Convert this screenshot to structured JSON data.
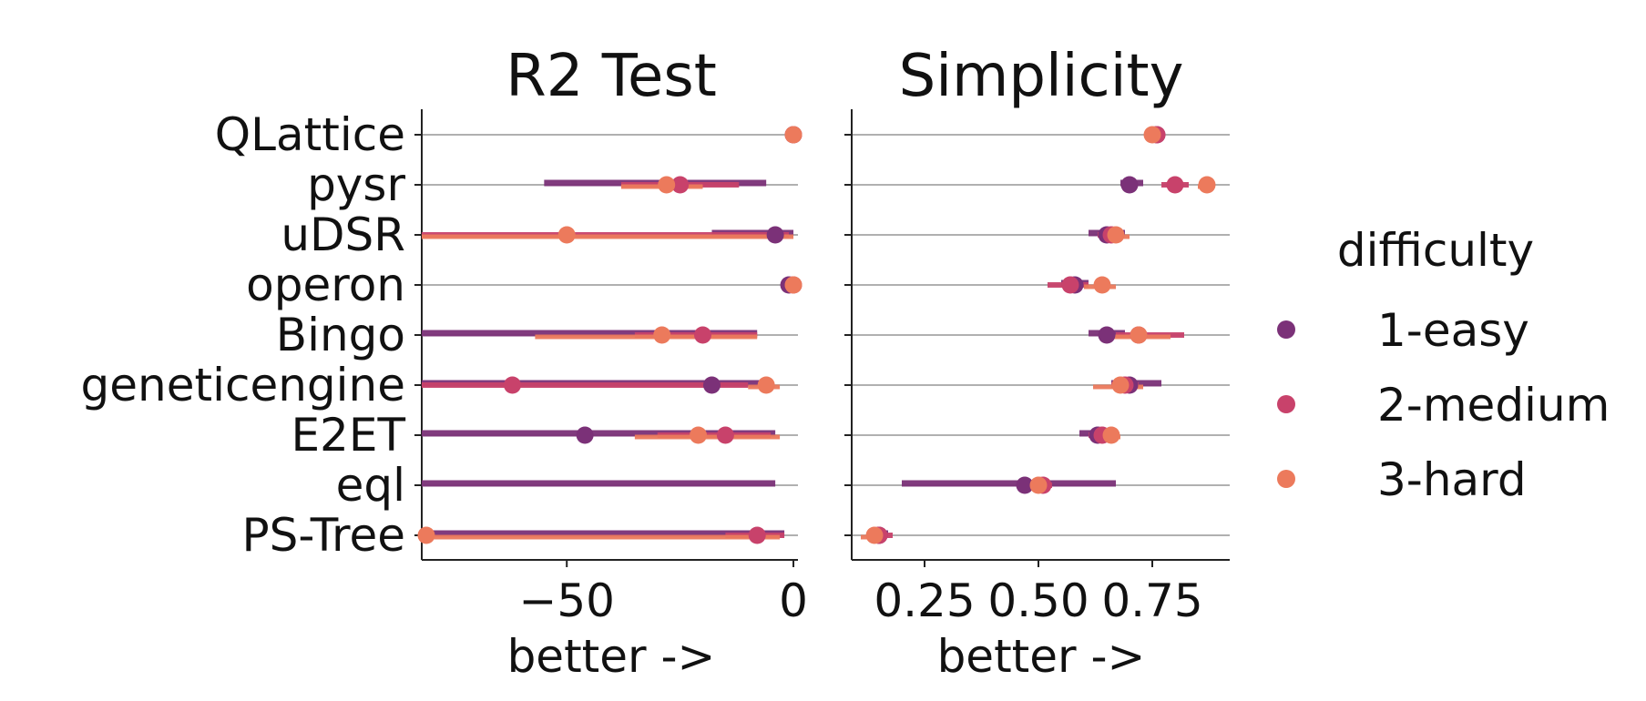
{
  "colors": {
    "1-easy": "#7b3178",
    "2-medium": "#c8426b",
    "3-hard": "#ec7a5c"
  },
  "chart_data": {
    "type": "scatter",
    "categories": [
      "QLattice",
      "pysr",
      "uDSR",
      "operon",
      "Bingo",
      "geneticengine",
      "E2ET",
      "eql",
      "PS-Tree"
    ],
    "legend": {
      "title": "difficulty",
      "placement": "right",
      "entries": [
        "1-easy",
        "2-medium",
        "3-hard"
      ]
    },
    "panels": [
      {
        "title": "R2 Test",
        "xlabel": "better ->",
        "xlim": [
          -82,
          1
        ],
        "xticks": [
          -50,
          0
        ],
        "xtick_labels": [
          "−50",
          "0"
        ],
        "grid": "horizontal",
        "series": [
          {
            "name": "1-easy",
            "points": [
              {
                "category": "QLattice",
                "value": 0,
                "ci": [
                  -1,
                  0
                ]
              },
              {
                "category": "pysr",
                "value": null,
                "ci": [
                  -55,
                  -6
                ]
              },
              {
                "category": "uDSR",
                "value": -4,
                "ci": [
                  -18,
                  0
                ]
              },
              {
                "category": "operon",
                "value": -1,
                "ci": [
                  -2,
                  0
                ]
              },
              {
                "category": "Bingo",
                "value": null,
                "ci": [
                  -82,
                  -8
                ]
              },
              {
                "category": "geneticengine",
                "value": -18,
                "ci": [
                  -82,
                  -5
                ]
              },
              {
                "category": "E2ET",
                "value": -46,
                "ci": [
                  -82,
                  -4
                ]
              },
              {
                "category": "eql",
                "value": null,
                "ci": [
                  -82,
                  -4
                ]
              },
              {
                "category": "PS-Tree",
                "value": null,
                "ci": [
                  -82,
                  -2
                ]
              }
            ]
          },
          {
            "name": "2-medium",
            "points": [
              {
                "category": "QLattice",
                "value": 0,
                "ci": [
                  -1,
                  0
                ]
              },
              {
                "category": "pysr",
                "value": -25,
                "ci": [
                  -38,
                  -12
                ]
              },
              {
                "category": "uDSR",
                "value": null,
                "ci": [
                  -82,
                  -1
                ]
              },
              {
                "category": "operon",
                "value": 0,
                "ci": [
                  -1,
                  0
                ]
              },
              {
                "category": "Bingo",
                "value": -20,
                "ci": [
                  -35,
                  -8
                ]
              },
              {
                "category": "geneticengine",
                "value": -62,
                "ci": [
                  -82,
                  -10
                ]
              },
              {
                "category": "E2ET",
                "value": -15,
                "ci": [
                  -30,
                  -5
                ]
              },
              {
                "category": "eql",
                "value": null,
                "ci": null
              },
              {
                "category": "PS-Tree",
                "value": -8,
                "ci": [
                  -15,
                  -2
                ]
              }
            ]
          },
          {
            "name": "3-hard",
            "points": [
              {
                "category": "QLattice",
                "value": 0,
                "ci": [
                  -1,
                  0
                ]
              },
              {
                "category": "pysr",
                "value": -28,
                "ci": [
                  -38,
                  -20
                ]
              },
              {
                "category": "uDSR",
                "value": -50,
                "ci": [
                  -82,
                  0
                ]
              },
              {
                "category": "operon",
                "value": 0,
                "ci": [
                  -1,
                  0
                ]
              },
              {
                "category": "Bingo",
                "value": -29,
                "ci": [
                  -57,
                  -8
                ]
              },
              {
                "category": "geneticengine",
                "value": -6,
                "ci": [
                  -10,
                  -3
                ]
              },
              {
                "category": "E2ET",
                "value": -21,
                "ci": [
                  -35,
                  -3
                ]
              },
              {
                "category": "eql",
                "value": null,
                "ci": null
              },
              {
                "category": "PS-Tree",
                "value": -81,
                "ci": [
                  -82,
                  -3
                ]
              }
            ]
          }
        ]
      },
      {
        "title": "Simplicity",
        "xlabel": "better ->",
        "xlim": [
          0.09,
          0.92
        ],
        "xticks": [
          0.25,
          0.5,
          0.75
        ],
        "xtick_labels": [
          "0.25",
          "0.50",
          "0.75"
        ],
        "grid": "horizontal",
        "series": [
          {
            "name": "1-easy",
            "points": [
              {
                "category": "QLattice",
                "value": 0.76,
                "ci": [
                  0.75,
                  0.77
                ]
              },
              {
                "category": "pysr",
                "value": 0.7,
                "ci": [
                  0.68,
                  0.73
                ]
              },
              {
                "category": "uDSR",
                "value": 0.65,
                "ci": [
                  0.61,
                  0.69
                ]
              },
              {
                "category": "operon",
                "value": 0.58,
                "ci": [
                  0.55,
                  0.61
                ]
              },
              {
                "category": "Bingo",
                "value": 0.65,
                "ci": [
                  0.61,
                  0.69
                ]
              },
              {
                "category": "geneticengine",
                "value": 0.7,
                "ci": [
                  0.66,
                  0.77
                ]
              },
              {
                "category": "E2ET",
                "value": 0.63,
                "ci": [
                  0.59,
                  0.65
                ]
              },
              {
                "category": "eql",
                "value": 0.47,
                "ci": [
                  0.2,
                  0.67
                ]
              },
              {
                "category": "PS-Tree",
                "value": 0.15,
                "ci": [
                  0.13,
                  0.17
                ]
              }
            ]
          },
          {
            "name": "2-medium",
            "points": [
              {
                "category": "QLattice",
                "value": 0.76,
                "ci": [
                  0.75,
                  0.77
                ]
              },
              {
                "category": "pysr",
                "value": 0.8,
                "ci": [
                  0.77,
                  0.83
                ]
              },
              {
                "category": "uDSR",
                "value": 0.66,
                "ci": [
                  0.63,
                  0.68
                ]
              },
              {
                "category": "operon",
                "value": 0.57,
                "ci": [
                  0.52,
                  0.61
                ]
              },
              {
                "category": "Bingo",
                "value": 0.72,
                "ci": [
                  0.67,
                  0.82
                ]
              },
              {
                "category": "geneticengine",
                "value": 0.69,
                "ci": [
                  0.66,
                  0.72
                ]
              },
              {
                "category": "E2ET",
                "value": 0.64,
                "ci": [
                  0.61,
                  0.66
                ]
              },
              {
                "category": "eql",
                "value": 0.51,
                "ci": [
                  0.49,
                  0.53
                ]
              },
              {
                "category": "PS-Tree",
                "value": 0.15,
                "ci": [
                  0.13,
                  0.18
                ]
              }
            ]
          },
          {
            "name": "3-hard",
            "points": [
              {
                "category": "QLattice",
                "value": 0.75,
                "ci": [
                  0.74,
                  0.76
                ]
              },
              {
                "category": "pysr",
                "value": 0.87,
                "ci": [
                  0.85,
                  0.88
                ]
              },
              {
                "category": "uDSR",
                "value": 0.67,
                "ci": [
                  0.65,
                  0.7
                ]
              },
              {
                "category": "operon",
                "value": 0.64,
                "ci": [
                  0.6,
                  0.67
                ]
              },
              {
                "category": "Bingo",
                "value": 0.72,
                "ci": [
                  0.66,
                  0.79
                ]
              },
              {
                "category": "geneticengine",
                "value": 0.68,
                "ci": [
                  0.62,
                  0.73
                ]
              },
              {
                "category": "E2ET",
                "value": 0.66,
                "ci": [
                  0.64,
                  0.68
                ]
              },
              {
                "category": "eql",
                "value": 0.5,
                "ci": [
                  0.48,
                  0.52
                ]
              },
              {
                "category": "PS-Tree",
                "value": 0.14,
                "ci": [
                  0.11,
                  0.16
                ]
              }
            ]
          }
        ]
      }
    ]
  }
}
